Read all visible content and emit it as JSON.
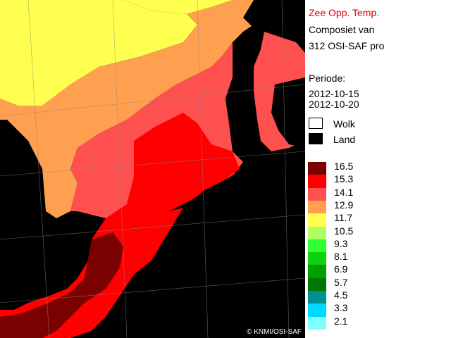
{
  "title": {
    "line1": "Zee Opp. Temp.",
    "line2": "Composiet van",
    "line3": "312 OSI-SAF pro"
  },
  "period": {
    "label": "Periode:",
    "start": "2012-10-15",
    "end": "2012-10-20"
  },
  "keys": {
    "cloud": "Wolk",
    "land": "Land"
  },
  "legend": [
    {
      "label": "16.5",
      "color": "#7b0000"
    },
    {
      "label": "15.3",
      "color": "#ff0000"
    },
    {
      "label": "14.1",
      "color": "#ff5050"
    },
    {
      "label": "12.9",
      "color": "#ffa050"
    },
    {
      "label": "11.7",
      "color": "#ffff50"
    },
    {
      "label": "10.5",
      "color": "#b0ff60"
    },
    {
      "label": "9.3",
      "color": "#30ff30"
    },
    {
      "label": "8.1",
      "color": "#10d010"
    },
    {
      "label": "6.9",
      "color": "#00a000"
    },
    {
      "label": "5.7",
      "color": "#007800"
    },
    {
      "label": "4.5",
      "color": "#009090"
    },
    {
      "label": "3.3",
      "color": "#00d8ff"
    },
    {
      "label": "2.1",
      "color": "#80ffff"
    }
  ],
  "colors": {
    "land": "#000000",
    "cloud": "#ffffff",
    "grid": "#888888"
  },
  "copyright": "© KNMI/OSI-SAF"
}
